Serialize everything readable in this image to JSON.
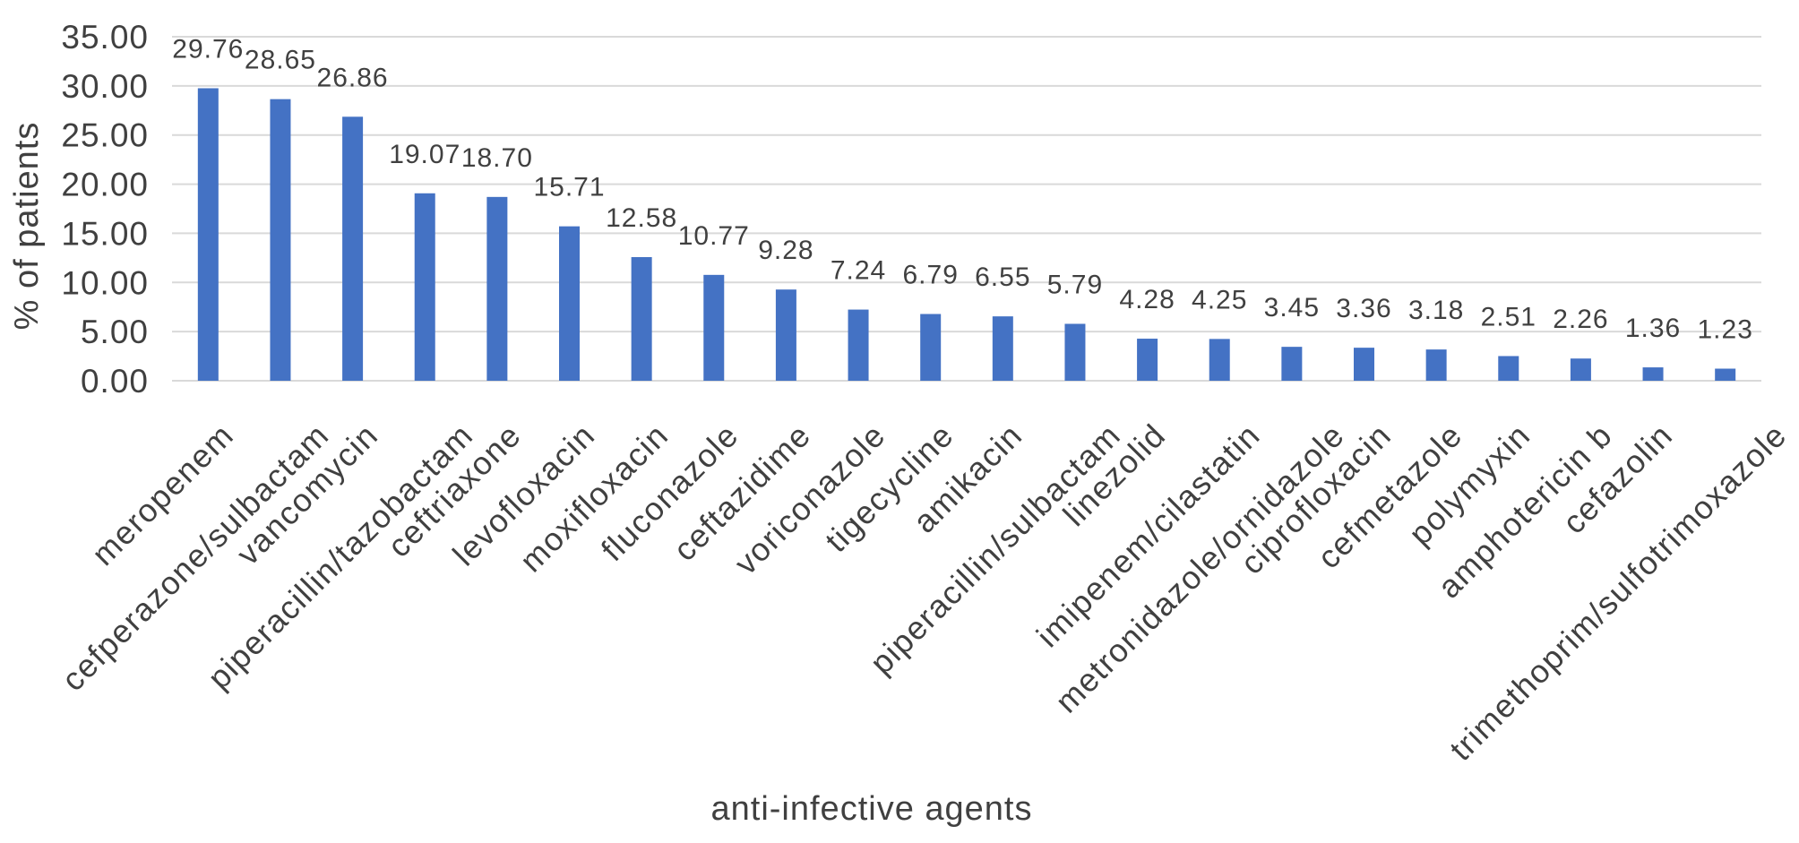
{
  "chart_data": {
    "type": "bar",
    "xlabel": "anti-infective agents",
    "ylabel": "% of patients",
    "ylim": [
      0,
      35
    ],
    "yticks": [
      "0.00",
      "5.00",
      "10.00",
      "15.00",
      "20.00",
      "25.00",
      "30.00",
      "35.00"
    ],
    "grid": true,
    "categories": [
      "meropenem",
      "cefperazone/sulbactam",
      "vancomycin",
      "piperacillin/tazobactam",
      "ceftriaxone",
      "levofloxacin",
      "moxifloxacin",
      "fluconazole",
      "ceftazidime",
      "voriconazole",
      "tigecycline",
      "amikacin",
      "piperacillin/sulbactam",
      "linezolid",
      "imipenem/cilastatin",
      "metronidazole/ornidazole",
      "ciprofloxacin",
      "cefmetazole",
      "polymyxin",
      "amphotericin b",
      "cefazolin",
      "trimethoprim/sulfotrimoxazole"
    ],
    "values": [
      29.76,
      28.65,
      26.86,
      19.07,
      18.7,
      15.71,
      12.58,
      10.77,
      9.28,
      7.24,
      6.79,
      6.55,
      5.79,
      4.28,
      4.25,
      3.45,
      3.36,
      3.18,
      2.51,
      2.26,
      1.36,
      1.23
    ],
    "data_labels": [
      "29.76",
      "28.65",
      "26.86",
      "19.07",
      "18.70",
      "15.71",
      "12.58",
      "10.77",
      "9.28",
      "7.24",
      "6.79",
      "6.55",
      "5.79",
      "4.28",
      "4.25",
      "3.45",
      "3.36",
      "3.18",
      "2.51",
      "2.26",
      "1.36",
      "1.23"
    ]
  },
  "colors": {
    "bar": "#4472C4",
    "gridline": "#D9D9D9",
    "text": "#404040"
  }
}
